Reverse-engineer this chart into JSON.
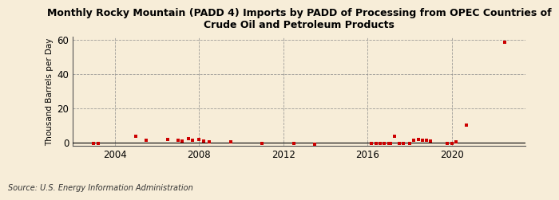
{
  "title": "Monthly Rocky Mountain (PADD 4) Imports by PADD of Processing from OPEC Countries of\nCrude Oil and Petroleum Products",
  "ylabel": "Thousand Barrels per Day",
  "source": "Source: U.S. Energy Information Administration",
  "background_color": "#f7edd8",
  "plot_bg_color": "#f7edd8",
  "marker_color": "#cc0000",
  "ylim": [
    -2,
    62
  ],
  "yticks": [
    0,
    20,
    40,
    60
  ],
  "xlim": [
    2002.0,
    2023.5
  ],
  "xticks": [
    2004,
    2008,
    2012,
    2016,
    2020
  ],
  "data_points": [
    [
      2003.0,
      -0.5
    ],
    [
      2003.2,
      -0.5
    ],
    [
      2005.0,
      3.5
    ],
    [
      2005.5,
      1.5
    ],
    [
      2006.5,
      2.0
    ],
    [
      2007.0,
      1.5
    ],
    [
      2007.2,
      1.0
    ],
    [
      2007.5,
      2.5
    ],
    [
      2007.7,
      1.2
    ],
    [
      2008.0,
      2.0
    ],
    [
      2008.2,
      1.0
    ],
    [
      2008.5,
      0.5
    ],
    [
      2009.5,
      0.5
    ],
    [
      2011.0,
      -0.5
    ],
    [
      2012.5,
      -0.5
    ],
    [
      2013.5,
      -0.8
    ],
    [
      2016.2,
      -0.5
    ],
    [
      2016.4,
      -0.3
    ],
    [
      2016.6,
      -0.3
    ],
    [
      2016.8,
      -0.3
    ],
    [
      2017.0,
      -0.3
    ],
    [
      2017.1,
      -0.3
    ],
    [
      2017.3,
      3.5
    ],
    [
      2017.5,
      -0.3
    ],
    [
      2017.7,
      -0.3
    ],
    [
      2018.0,
      -0.3
    ],
    [
      2018.2,
      1.5
    ],
    [
      2018.4,
      1.8
    ],
    [
      2018.6,
      1.5
    ],
    [
      2018.8,
      1.2
    ],
    [
      2019.0,
      1.0
    ],
    [
      2019.8,
      -0.5
    ],
    [
      2020.0,
      -0.5
    ],
    [
      2020.2,
      0.5
    ],
    [
      2020.7,
      10.0
    ],
    [
      2022.5,
      58.5
    ]
  ]
}
